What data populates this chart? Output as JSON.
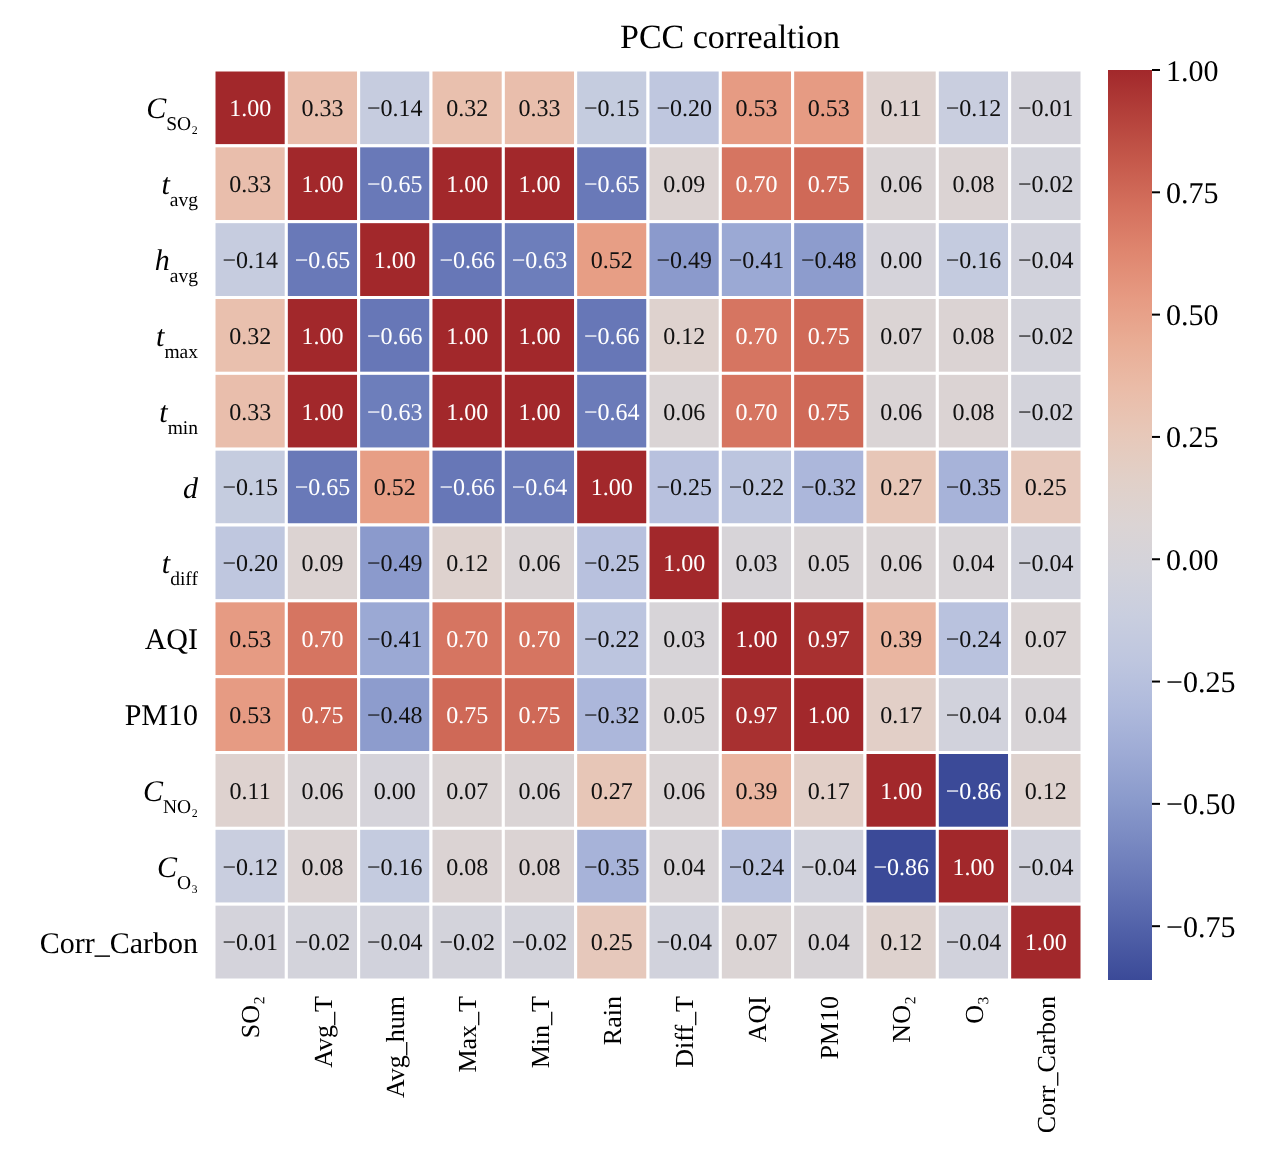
{
  "chart_data": {
    "type": "heatmap",
    "title": "PCC correaltion",
    "categories": [
      "SO₂",
      "Avg_T",
      "Avg_hum",
      "Max_T",
      "Min_T",
      "Rain",
      "Diff_T",
      "AQI",
      "PM10",
      "NO₂",
      "O₃",
      "Corr_Carbon"
    ],
    "y_categories": [
      "C$_{SO₂}$",
      "t$_{avg}$",
      "h$_{avg}$",
      "t$_{max}$",
      "t$_{min}$",
      "d",
      "t$_{diff}$",
      "AQI",
      "PM10",
      "C$_{NO₂}$",
      "C$_{O₃}$",
      "Corr_Carbon"
    ],
    "cells": [
      [
        1.0,
        0.33,
        -0.14,
        0.32,
        0.33,
        -0.15,
        -0.2,
        0.53,
        0.53,
        0.11,
        -0.12,
        -0.01
      ],
      [
        0.33,
        1.0,
        -0.65,
        1.0,
        1.0,
        -0.65,
        0.09,
        0.7,
        0.75,
        0.06,
        0.08,
        -0.02
      ],
      [
        -0.14,
        -0.65,
        1.0,
        -0.66,
        -0.63,
        0.52,
        -0.49,
        -0.41,
        -0.48,
        0.0,
        -0.16,
        -0.04
      ],
      [
        0.32,
        1.0,
        -0.66,
        1.0,
        1.0,
        -0.66,
        0.12,
        0.7,
        0.75,
        0.07,
        0.08,
        -0.02
      ],
      [
        0.33,
        1.0,
        -0.63,
        1.0,
        1.0,
        -0.64,
        0.06,
        0.7,
        0.75,
        0.06,
        0.08,
        -0.02
      ],
      [
        -0.15,
        -0.65,
        0.52,
        -0.66,
        -0.64,
        1.0,
        -0.25,
        -0.22,
        -0.32,
        0.27,
        -0.35,
        0.25
      ],
      [
        -0.2,
        0.09,
        -0.49,
        0.12,
        0.06,
        -0.25,
        1.0,
        0.03,
        0.05,
        0.06,
        0.04,
        -0.04
      ],
      [
        0.53,
        0.7,
        -0.41,
        0.7,
        0.7,
        -0.22,
        0.03,
        1.0,
        0.97,
        0.39,
        -0.24,
        0.07
      ],
      [
        0.53,
        0.75,
        -0.48,
        0.75,
        0.75,
        -0.32,
        0.05,
        0.97,
        1.0,
        0.17,
        -0.04,
        0.04
      ],
      [
        0.11,
        0.06,
        0.0,
        0.07,
        0.06,
        0.27,
        0.06,
        0.39,
        0.17,
        1.0,
        -0.86,
        0.12
      ],
      [
        -0.12,
        0.08,
        -0.16,
        0.08,
        0.08,
        -0.35,
        0.04,
        -0.24,
        -0.04,
        -0.86,
        1.0,
        -0.04
      ],
      [
        -0.01,
        -0.02,
        -0.04,
        -0.02,
        -0.02,
        0.25,
        -0.04,
        0.07,
        0.04,
        0.12,
        -0.04,
        1.0
      ]
    ],
    "cell_labels": [
      [
        "1.00",
        "0.33",
        "−0.14",
        "0.32",
        "0.33",
        "−0.15",
        "−0.20",
        "0.53",
        "0.53",
        "0.11",
        "−0.12",
        "−0.01"
      ],
      [
        "0.33",
        "1.00",
        "−0.65",
        "1.00",
        "1.00",
        "−0.65",
        "0.09",
        "0.70",
        "0.75",
        "0.06",
        "0.08",
        "−0.02"
      ],
      [
        "−0.14",
        "−0.65",
        "1.00",
        "−0.66",
        "−0.63",
        "0.52",
        "−0.49",
        "−0.41",
        "−0.48",
        "0.00",
        "−0.16",
        "−0.04"
      ],
      [
        "0.32",
        "1.00",
        "−0.66",
        "1.00",
        "1.00",
        "−0.66",
        "0.12",
        "0.70",
        "0.75",
        "0.07",
        "0.08",
        "−0.02"
      ],
      [
        "0.33",
        "1.00",
        "−0.63",
        "1.00",
        "1.00",
        "−0.64",
        "0.06",
        "0.70",
        "0.75",
        "0.06",
        "0.08",
        "−0.02"
      ],
      [
        "−0.15",
        "−0.65",
        "0.52",
        "−0.66",
        "−0.64",
        "1.00",
        "−0.25",
        "−0.22",
        "−0.32",
        "0.27",
        "−0.35",
        "0.25"
      ],
      [
        "−0.20",
        "0.09",
        "−0.49",
        "0.12",
        "0.06",
        "−0.25",
        "1.00",
        "0.03",
        "0.05",
        "0.06",
        "0.04",
        "−0.04"
      ],
      [
        "0.53",
        "0.70",
        "−0.41",
        "0.70",
        "0.70",
        "−0.22",
        "0.03",
        "1.00",
        "0.97",
        "0.39",
        "−0.24",
        "0.07"
      ],
      [
        "0.53",
        "0.75",
        "−0.48",
        "0.75",
        "0.75",
        "−0.32",
        "0.05",
        "0.97",
        "1.00",
        "0.17",
        "−0.04",
        "0.04"
      ],
      [
        "0.11",
        "0.06",
        "0.00",
        "0.07",
        "0.06",
        "0.27",
        "0.06",
        "0.39",
        "0.17",
        "1.00",
        "−0.86",
        "0.12"
      ],
      [
        "−0.12",
        "0.08",
        "−0.16",
        "0.08",
        "0.08",
        "−0.35",
        "0.04",
        "−0.24",
        "−0.04",
        "−0.86",
        "1.00",
        "−0.04"
      ],
      [
        "−0.01",
        "−0.02",
        "−0.04",
        "−0.02",
        "−0.02",
        "0.25",
        "−0.04",
        "0.07",
        "0.04",
        "0.12",
        "−0.04",
        "1.00"
      ]
    ],
    "clim": [
      -0.86,
      1.0
    ],
    "cticks": [
      {
        "value": -0.75,
        "label": "−0.75"
      },
      {
        "value": -0.5,
        "label": "−0.50"
      },
      {
        "value": -0.25,
        "label": "−0.25"
      },
      {
        "value": 0,
        "label": "0.00"
      },
      {
        "value": 0.25,
        "label": "0.25"
      },
      {
        "value": 0.5,
        "label": "0.50"
      },
      {
        "value": 0.75,
        "label": "0.75"
      },
      {
        "value": 1,
        "label": "1.00"
      }
    ]
  }
}
